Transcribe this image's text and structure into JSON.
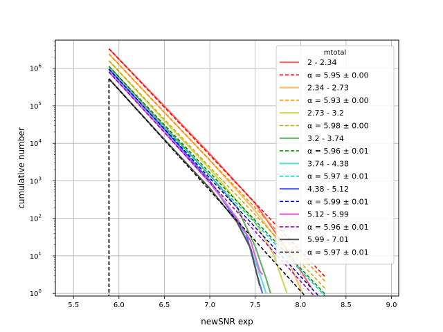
{
  "chart_data": {
    "type": "line",
    "xlabel": "newSNR exp",
    "ylabel": "cumulative number",
    "xlim": [
      5.3,
      9.08
    ],
    "ylim_log10": [
      -0.07,
      6.75
    ],
    "y_scale": "log",
    "x_ticks": [
      "5.5",
      "6.0",
      "6.5",
      "7.0",
      "7.5",
      "8.0",
      "8.5",
      "9.0"
    ],
    "x_tick_values": [
      5.5,
      6.0,
      6.5,
      7.0,
      7.5,
      8.0,
      8.5,
      9.0
    ],
    "y_ticks": [
      {
        "base": "10",
        "exp": "0",
        "value_log10": 0
      },
      {
        "base": "10",
        "exp": "1",
        "value_log10": 1
      },
      {
        "base": "10",
        "exp": "2",
        "value_log10": 2
      },
      {
        "base": "10",
        "exp": "3",
        "value_log10": 3
      },
      {
        "base": "10",
        "exp": "4",
        "value_log10": 4
      },
      {
        "base": "10",
        "exp": "5",
        "value_log10": 5
      },
      {
        "base": "10",
        "exp": "6",
        "value_log10": 6
      }
    ],
    "grid": true,
    "legend_position": "top-right",
    "legend_title": "mtotal",
    "threshold_x": 5.89,
    "series": [
      {
        "name": "2 - 2.34",
        "kind": "data",
        "color": "#ff6666",
        "points": [
          [
            5.89,
            6.52
          ],
          [
            6.5,
            4.99
          ],
          [
            7.0,
            3.72
          ],
          [
            7.5,
            2.4
          ],
          [
            7.8,
            1.35
          ],
          [
            8.0,
            0.6
          ],
          [
            8.12,
            0.15
          ]
        ]
      },
      {
        "name": "α = 5.95 ± 0.00",
        "kind": "fit",
        "color": "#ff0000",
        "points": [
          [
            5.89,
            6.52
          ],
          [
            8.27,
            0.44
          ]
        ]
      },
      {
        "name": "2.34 - 2.73",
        "kind": "data",
        "color": "#ffbb66",
        "points": [
          [
            5.89,
            6.38
          ],
          [
            6.5,
            4.82
          ],
          [
            7.0,
            3.55
          ],
          [
            7.5,
            2.2
          ],
          [
            7.8,
            1.25
          ],
          [
            8.02,
            0.0
          ]
        ]
      },
      {
        "name": "α = 5.93 ± 0.00",
        "kind": "fit",
        "color": "#ff8800",
        "points": [
          [
            5.89,
            6.38
          ],
          [
            8.27,
            0.32
          ]
        ]
      },
      {
        "name": "2.73 - 3.2",
        "kind": "data",
        "color": "#d4d45a",
        "points": [
          [
            5.89,
            6.2
          ],
          [
            6.5,
            4.6
          ],
          [
            7.0,
            3.32
          ],
          [
            7.5,
            1.9
          ],
          [
            7.7,
            1.05
          ],
          [
            7.85,
            0.0
          ]
        ]
      },
      {
        "name": "α = 5.98 ± 0.00",
        "kind": "fit",
        "color": "#ccaa00",
        "points": [
          [
            5.89,
            6.2
          ],
          [
            8.27,
            0.13
          ]
        ]
      },
      {
        "name": "3.2 - 3.74",
        "kind": "data",
        "color": "#66b266",
        "points": [
          [
            5.89,
            6.05
          ],
          [
            6.5,
            4.45
          ],
          [
            7.0,
            3.15
          ],
          [
            7.3,
            2.3
          ],
          [
            7.5,
            1.25
          ],
          [
            7.62,
            0.4
          ],
          [
            7.67,
            0.0
          ]
        ]
      },
      {
        "name": "α = 5.96 ± 0.01",
        "kind": "fit",
        "color": "#008800",
        "points": [
          [
            5.89,
            6.05
          ],
          [
            8.27,
            -0.02
          ]
        ]
      },
      {
        "name": "3.74 - 4.38",
        "kind": "data",
        "color": "#66dddd",
        "points": [
          [
            5.89,
            5.95
          ],
          [
            6.5,
            4.35
          ],
          [
            7.0,
            3.0
          ],
          [
            7.3,
            2.0
          ],
          [
            7.45,
            1.2
          ],
          [
            7.58,
            0.3
          ],
          [
            7.62,
            0.0
          ]
        ]
      },
      {
        "name": "α = 5.97 ± 0.01",
        "kind": "fit",
        "color": "#00cccc",
        "points": [
          [
            5.89,
            5.95
          ],
          [
            8.27,
            -0.07
          ]
        ]
      },
      {
        "name": "4.38 - 5.12",
        "kind": "data",
        "color": "#5566ff",
        "points": [
          [
            5.89,
            5.98
          ],
          [
            6.5,
            4.38
          ],
          [
            7.0,
            3.0
          ],
          [
            7.25,
            2.1
          ],
          [
            7.4,
            1.6
          ],
          [
            7.52,
            0.5
          ],
          [
            7.58,
            0.0
          ]
        ]
      },
      {
        "name": "α = 5.99 ± 0.01",
        "kind": "fit",
        "color": "#0000cc",
        "points": [
          [
            5.89,
            5.98
          ],
          [
            8.2,
            -0.07
          ]
        ]
      },
      {
        "name": "5.12 - 5.99",
        "kind": "data",
        "color": "#dd66dd",
        "points": [
          [
            5.89,
            5.9
          ],
          [
            6.5,
            4.3
          ],
          [
            7.0,
            2.95
          ],
          [
            7.3,
            2.0
          ],
          [
            7.45,
            1.4
          ],
          [
            7.55,
            0.6
          ],
          [
            7.58,
            0.5
          ]
        ]
      },
      {
        "name": "α = 5.96 ± 0.01",
        "kind": "fit",
        "color": "#aa00aa",
        "points": [
          [
            5.89,
            5.9
          ],
          [
            8.15,
            -0.07
          ]
        ]
      },
      {
        "name": "5.99 - 7.01",
        "kind": "data",
        "color": "#555555",
        "points": [
          [
            5.89,
            5.72
          ],
          [
            6.5,
            4.1
          ],
          [
            7.0,
            2.8
          ],
          [
            7.3,
            1.9
          ],
          [
            7.45,
            1.2
          ],
          [
            7.52,
            0.5
          ],
          [
            7.55,
            0.2
          ]
        ]
      },
      {
        "name": "α = 5.97 ± 0.01",
        "kind": "fit",
        "color": "#000000",
        "points": [
          [
            5.89,
            5.72
          ],
          [
            8.05,
            -0.07
          ]
        ]
      }
    ]
  }
}
